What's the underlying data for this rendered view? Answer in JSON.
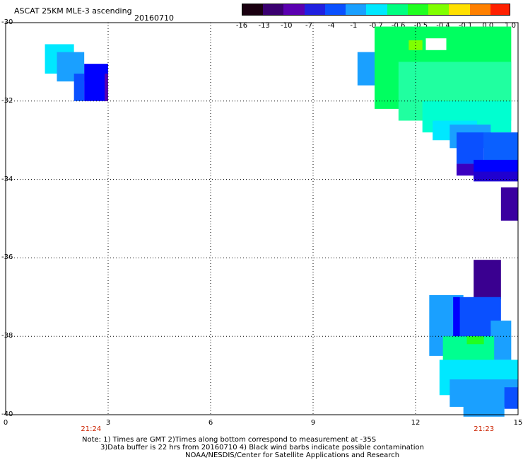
{
  "header": {
    "title": "ASCAT 25KM MLE-3 ascending",
    "date": "20160710"
  },
  "colorbar": {
    "labels": [
      "-16",
      "-13",
      "-10",
      "-7",
      "-4",
      "-1",
      "-0.7",
      "-0.6",
      "-0.5",
      "-0.4",
      "-0.1",
      "0.0",
      "1.0"
    ],
    "colors": [
      "#1a0010",
      "#3a0070",
      "#5a00b0",
      "#2020e0",
      "#0a50ff",
      "#1aa0ff",
      "#00e8ff",
      "#00ff80",
      "#20ff20",
      "#80ff00",
      "#ffe000",
      "#ff8000",
      "#ff2000"
    ]
  },
  "axes": {
    "y_labels": [
      "-30",
      "-32",
      "-34",
      "-36",
      "-38",
      "-40"
    ],
    "x_labels": [
      "0",
      "3",
      "6",
      "9",
      "12",
      "15"
    ],
    "x_range": [
      0,
      15
    ],
    "y_range": [
      -30,
      -40
    ]
  },
  "times": [
    {
      "label": "21:24",
      "x": 2.5
    },
    {
      "label": "21:23",
      "x": 14.0
    }
  ],
  "notes": {
    "line1": "Note: 1) Times are GMT 2)Times along bottom correspond to measurement at -35S",
    "line2": "3)Data buffer is 22 hrs from 20160710 4) Black wind barbs indicate possible contamination",
    "line3": "NOAA/NESDIS/Center for Satellite Applications and Research"
  },
  "data_patches": [
    {
      "x": [
        1.15,
        2.0
      ],
      "y": [
        -30.55,
        -31.3
      ],
      "color": "#00e8ff"
    },
    {
      "x": [
        1.5,
        2.3
      ],
      "y": [
        -30.75,
        -31.5
      ],
      "color": "#1aa0ff"
    },
    {
      "x": [
        2.0,
        2.3
      ],
      "y": [
        -31.3,
        -32.0
      ],
      "color": "#0a50ff"
    },
    {
      "x": [
        2.3,
        3.0
      ],
      "y": [
        -31.05,
        -32.0
      ],
      "color": "#0000ff"
    },
    {
      "x": [
        2.9,
        3.0
      ],
      "y": [
        -31.3,
        -32.0
      ],
      "color": "#5a00b0"
    },
    {
      "x": [
        10.3,
        11.1
      ],
      "y": [
        -30.75,
        -31.6
      ],
      "color": "#1aa0ff"
    },
    {
      "x": [
        10.8,
        14.8
      ],
      "y": [
        -30.1,
        -32.2
      ],
      "color": "#00ff60"
    },
    {
      "x": [
        11.5,
        14.8
      ],
      "y": [
        -31.0,
        -32.5
      ],
      "color": "#20ffa0"
    },
    {
      "x": [
        12.2,
        14.8
      ],
      "y": [
        -32.0,
        -32.8
      ],
      "color": "#00ffd0"
    },
    {
      "x": [
        12.5,
        13.8
      ],
      "y": [
        -32.5,
        -33.0
      ],
      "color": "#00e8ff"
    },
    {
      "x": [
        13.0,
        14.2
      ],
      "y": [
        -32.6,
        -33.2
      ],
      "color": "#1aa0ff"
    },
    {
      "x": [
        13.2,
        14.0
      ],
      "y": [
        -32.8,
        -33.6
      ],
      "color": "#0a50ff"
    },
    {
      "x": [
        14.0,
        15.0
      ],
      "y": [
        -32.8,
        -33.8
      ],
      "color": "#0a60ff"
    },
    {
      "x": [
        13.2,
        13.8
      ],
      "y": [
        -33.6,
        -33.9
      ],
      "color": "#3a00c0"
    },
    {
      "x": [
        13.7,
        15.0
      ],
      "y": [
        -33.5,
        -34.0
      ],
      "color": "#0000ff"
    },
    {
      "x": [
        13.7,
        15.0
      ],
      "y": [
        -33.8,
        -34.05
      ],
      "color": "#2000d0"
    },
    {
      "x": [
        11.8,
        12.2
      ],
      "y": [
        -30.45,
        -30.7
      ],
      "color": "#80ff00"
    },
    {
      "x": [
        12.3,
        12.9
      ],
      "y": [
        -30.4,
        -30.7
      ],
      "color": "#ffffff"
    },
    {
      "x": [
        14.5,
        15.0
      ],
      "y": [
        -34.2,
        -35.05
      ],
      "color": "#3a00a0"
    },
    {
      "x": [
        13.7,
        14.5
      ],
      "y": [
        -36.05,
        -37.05
      ],
      "color": "#3a0090"
    },
    {
      "x": [
        12.4,
        13.4
      ],
      "y": [
        -36.95,
        -38.5
      ],
      "color": "#1aa0ff"
    },
    {
      "x": [
        13.1,
        13.3
      ],
      "y": [
        -37.0,
        -38.5
      ],
      "color": "#0000ff"
    },
    {
      "x": [
        13.3,
        14.5
      ],
      "y": [
        -37.0,
        -38.2
      ],
      "color": "#0a50ff"
    },
    {
      "x": [
        14.2,
        14.8
      ],
      "y": [
        -37.6,
        -38.6
      ],
      "color": "#1aa0ff"
    },
    {
      "x": [
        12.8,
        14.3
      ],
      "y": [
        -38.0,
        -39.1
      ],
      "color": "#00ff90"
    },
    {
      "x": [
        13.5,
        14.0
      ],
      "y": [
        -38.0,
        -38.2
      ],
      "color": "#20ff20"
    },
    {
      "x": [
        12.7,
        15.0
      ],
      "y": [
        -38.6,
        -39.5
      ],
      "color": "#00e8ff"
    },
    {
      "x": [
        13.0,
        15.0
      ],
      "y": [
        -39.1,
        -39.8
      ],
      "color": "#1aa0ff"
    },
    {
      "x": [
        13.4,
        14.6
      ],
      "y": [
        -39.4,
        -40.05
      ],
      "color": "#1aa0ff"
    },
    {
      "x": [
        14.6,
        15.0
      ],
      "y": [
        -39.3,
        -39.85
      ],
      "color": "#0a50ff"
    }
  ]
}
